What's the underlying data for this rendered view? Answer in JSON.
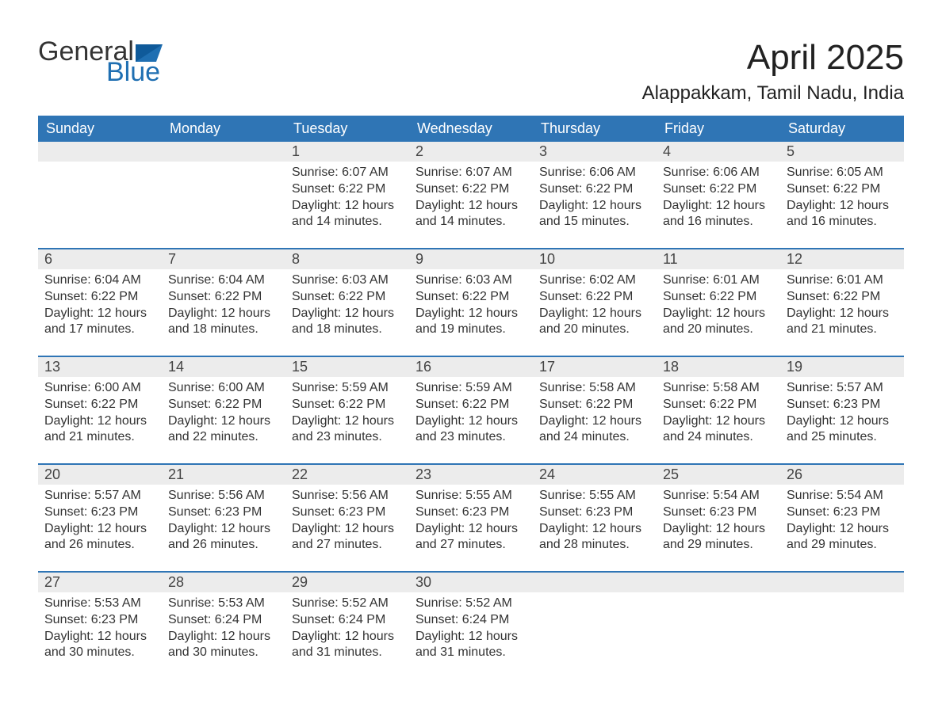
{
  "brand": {
    "word1": "General",
    "word2": "Blue",
    "flag_color": "#1f6fb2"
  },
  "title": "April 2025",
  "location": "Alappakkam, Tamil Nadu, India",
  "colors": {
    "header_bg": "#2f75b5",
    "header_text": "#ffffff",
    "daynum_bg": "#ececec",
    "text": "#333333",
    "rule": "#2f75b5"
  },
  "weekdays": [
    "Sunday",
    "Monday",
    "Tuesday",
    "Wednesday",
    "Thursday",
    "Friday",
    "Saturday"
  ],
  "weeks": [
    [
      {
        "empty": true
      },
      {
        "empty": true
      },
      {
        "num": "1",
        "sunrise": "Sunrise: 6:07 AM",
        "sunset": "Sunset: 6:22 PM",
        "daylight": "Daylight: 12 hours and 14 minutes."
      },
      {
        "num": "2",
        "sunrise": "Sunrise: 6:07 AM",
        "sunset": "Sunset: 6:22 PM",
        "daylight": "Daylight: 12 hours and 14 minutes."
      },
      {
        "num": "3",
        "sunrise": "Sunrise: 6:06 AM",
        "sunset": "Sunset: 6:22 PM",
        "daylight": "Daylight: 12 hours and 15 minutes."
      },
      {
        "num": "4",
        "sunrise": "Sunrise: 6:06 AM",
        "sunset": "Sunset: 6:22 PM",
        "daylight": "Daylight: 12 hours and 16 minutes."
      },
      {
        "num": "5",
        "sunrise": "Sunrise: 6:05 AM",
        "sunset": "Sunset: 6:22 PM",
        "daylight": "Daylight: 12 hours and 16 minutes."
      }
    ],
    [
      {
        "num": "6",
        "sunrise": "Sunrise: 6:04 AM",
        "sunset": "Sunset: 6:22 PM",
        "daylight": "Daylight: 12 hours and 17 minutes."
      },
      {
        "num": "7",
        "sunrise": "Sunrise: 6:04 AM",
        "sunset": "Sunset: 6:22 PM",
        "daylight": "Daylight: 12 hours and 18 minutes."
      },
      {
        "num": "8",
        "sunrise": "Sunrise: 6:03 AM",
        "sunset": "Sunset: 6:22 PM",
        "daylight": "Daylight: 12 hours and 18 minutes."
      },
      {
        "num": "9",
        "sunrise": "Sunrise: 6:03 AM",
        "sunset": "Sunset: 6:22 PM",
        "daylight": "Daylight: 12 hours and 19 minutes."
      },
      {
        "num": "10",
        "sunrise": "Sunrise: 6:02 AM",
        "sunset": "Sunset: 6:22 PM",
        "daylight": "Daylight: 12 hours and 20 minutes."
      },
      {
        "num": "11",
        "sunrise": "Sunrise: 6:01 AM",
        "sunset": "Sunset: 6:22 PM",
        "daylight": "Daylight: 12 hours and 20 minutes."
      },
      {
        "num": "12",
        "sunrise": "Sunrise: 6:01 AM",
        "sunset": "Sunset: 6:22 PM",
        "daylight": "Daylight: 12 hours and 21 minutes."
      }
    ],
    [
      {
        "num": "13",
        "sunrise": "Sunrise: 6:00 AM",
        "sunset": "Sunset: 6:22 PM",
        "daylight": "Daylight: 12 hours and 21 minutes."
      },
      {
        "num": "14",
        "sunrise": "Sunrise: 6:00 AM",
        "sunset": "Sunset: 6:22 PM",
        "daylight": "Daylight: 12 hours and 22 minutes."
      },
      {
        "num": "15",
        "sunrise": "Sunrise: 5:59 AM",
        "sunset": "Sunset: 6:22 PM",
        "daylight": "Daylight: 12 hours and 23 minutes."
      },
      {
        "num": "16",
        "sunrise": "Sunrise: 5:59 AM",
        "sunset": "Sunset: 6:22 PM",
        "daylight": "Daylight: 12 hours and 23 minutes."
      },
      {
        "num": "17",
        "sunrise": "Sunrise: 5:58 AM",
        "sunset": "Sunset: 6:22 PM",
        "daylight": "Daylight: 12 hours and 24 minutes."
      },
      {
        "num": "18",
        "sunrise": "Sunrise: 5:58 AM",
        "sunset": "Sunset: 6:22 PM",
        "daylight": "Daylight: 12 hours and 24 minutes."
      },
      {
        "num": "19",
        "sunrise": "Sunrise: 5:57 AM",
        "sunset": "Sunset: 6:23 PM",
        "daylight": "Daylight: 12 hours and 25 minutes."
      }
    ],
    [
      {
        "num": "20",
        "sunrise": "Sunrise: 5:57 AM",
        "sunset": "Sunset: 6:23 PM",
        "daylight": "Daylight: 12 hours and 26 minutes."
      },
      {
        "num": "21",
        "sunrise": "Sunrise: 5:56 AM",
        "sunset": "Sunset: 6:23 PM",
        "daylight": "Daylight: 12 hours and 26 minutes."
      },
      {
        "num": "22",
        "sunrise": "Sunrise: 5:56 AM",
        "sunset": "Sunset: 6:23 PM",
        "daylight": "Daylight: 12 hours and 27 minutes."
      },
      {
        "num": "23",
        "sunrise": "Sunrise: 5:55 AM",
        "sunset": "Sunset: 6:23 PM",
        "daylight": "Daylight: 12 hours and 27 minutes."
      },
      {
        "num": "24",
        "sunrise": "Sunrise: 5:55 AM",
        "sunset": "Sunset: 6:23 PM",
        "daylight": "Daylight: 12 hours and 28 minutes."
      },
      {
        "num": "25",
        "sunrise": "Sunrise: 5:54 AM",
        "sunset": "Sunset: 6:23 PM",
        "daylight": "Daylight: 12 hours and 29 minutes."
      },
      {
        "num": "26",
        "sunrise": "Sunrise: 5:54 AM",
        "sunset": "Sunset: 6:23 PM",
        "daylight": "Daylight: 12 hours and 29 minutes."
      }
    ],
    [
      {
        "num": "27",
        "sunrise": "Sunrise: 5:53 AM",
        "sunset": "Sunset: 6:23 PM",
        "daylight": "Daylight: 12 hours and 30 minutes."
      },
      {
        "num": "28",
        "sunrise": "Sunrise: 5:53 AM",
        "sunset": "Sunset: 6:24 PM",
        "daylight": "Daylight: 12 hours and 30 minutes."
      },
      {
        "num": "29",
        "sunrise": "Sunrise: 5:52 AM",
        "sunset": "Sunset: 6:24 PM",
        "daylight": "Daylight: 12 hours and 31 minutes."
      },
      {
        "num": "30",
        "sunrise": "Sunrise: 5:52 AM",
        "sunset": "Sunset: 6:24 PM",
        "daylight": "Daylight: 12 hours and 31 minutes."
      },
      {
        "empty": true
      },
      {
        "empty": true
      },
      {
        "empty": true
      }
    ]
  ]
}
